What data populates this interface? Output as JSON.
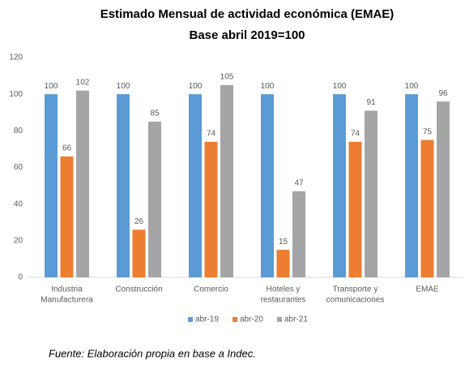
{
  "chart_data": {
    "type": "bar",
    "title": [
      "Estimado Mensual de actividad económica (EMAE)",
      "Base abril 2019=100"
    ],
    "categories": [
      [
        "Industria",
        "Manufacturera"
      ],
      [
        "Construcción"
      ],
      [
        "Comercio"
      ],
      [
        "Hoteles y",
        "restaurantes"
      ],
      [
        "Transporte y",
        "comunicaciones"
      ],
      [
        "EMAE"
      ]
    ],
    "series": [
      {
        "name": "abr-19",
        "color": "#5b9bd5",
        "values": [
          100,
          100,
          100,
          100,
          100,
          100
        ]
      },
      {
        "name": "abr-20",
        "color": "#ed7d31",
        "values": [
          66,
          26,
          74,
          15,
          74,
          75
        ]
      },
      {
        "name": "abr-21",
        "color": "#a5a5a5",
        "values": [
          102,
          85,
          105,
          47,
          91,
          96
        ]
      }
    ],
    "ylim": [
      0,
      120
    ],
    "yticks": [
      0,
      20,
      40,
      60,
      80,
      100,
      120
    ],
    "grid": false,
    "legend": "bottom",
    "source": "Fuente: Elaboración propia en base a Indec."
  }
}
